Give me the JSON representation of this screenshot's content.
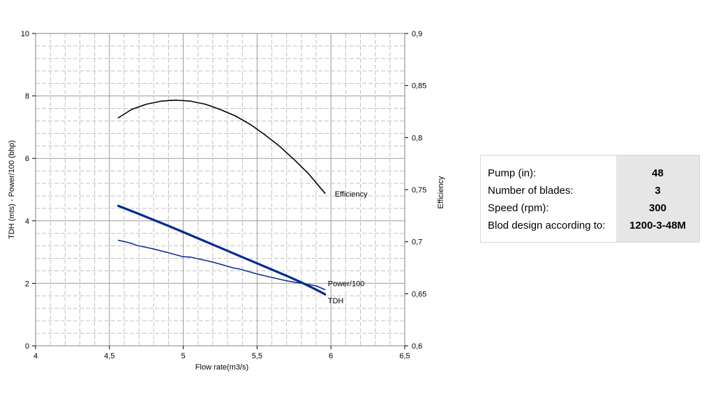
{
  "chart_data": {
    "type": "line",
    "xlabel": "Flow rate(m3/s)",
    "ylabel_left": "TDH (mts) - Power/100 (bhp)",
    "ylabel_right": "Efficiency",
    "xlim": [
      4,
      6.5
    ],
    "ylim_left": [
      0,
      10
    ],
    "ylim_right": [
      0.6,
      0.9
    ],
    "x_ticks": [
      "4",
      "4,5",
      "5",
      "5,5",
      "6",
      "6,5"
    ],
    "y_left_ticks": [
      "0",
      "2",
      "4",
      "6",
      "8",
      "10"
    ],
    "y_right_ticks": [
      "0,6",
      "0,65",
      "0,7",
      "0,75",
      "0,8",
      "0,85",
      "0,9"
    ],
    "grid": true,
    "series": [
      {
        "name": "Efficiency",
        "axis": "right",
        "color": "#000000",
        "x": [
          4.56,
          4.65,
          4.75,
          4.85,
          4.95,
          5.05,
          5.15,
          5.25,
          5.35,
          5.45,
          5.55,
          5.65,
          5.75,
          5.85,
          5.96
        ],
        "y": [
          0.819,
          0.827,
          0.832,
          0.835,
          0.836,
          0.835,
          0.832,
          0.827,
          0.821,
          0.813,
          0.803,
          0.792,
          0.779,
          0.765,
          0.7465
        ]
      },
      {
        "name": "TDH",
        "axis": "left",
        "color": "#002a90",
        "x": [
          4.56,
          4.7,
          4.8,
          4.9,
          5.0,
          5.1,
          5.2,
          5.3,
          5.4,
          5.5,
          5.6,
          5.7,
          5.8,
          5.9,
          5.96
        ],
        "y": [
          4.48,
          4.22,
          4.03,
          3.84,
          3.64,
          3.44,
          3.24,
          3.04,
          2.84,
          2.64,
          2.44,
          2.24,
          2.03,
          1.8,
          1.65
        ]
      },
      {
        "name": "Power/100",
        "axis": "left",
        "color": "#002a90",
        "x": [
          4.56,
          4.6,
          4.65,
          4.68,
          4.8,
          4.9,
          5.0,
          5.05,
          5.2,
          5.35,
          5.38,
          5.5,
          5.7,
          5.9,
          5.96
        ],
        "y": [
          3.38,
          3.34,
          3.28,
          3.22,
          3.1,
          2.98,
          2.85,
          2.84,
          2.68,
          2.48,
          2.46,
          2.3,
          2.08,
          1.92,
          1.8
        ]
      }
    ]
  },
  "info_table": {
    "rows": [
      {
        "label": "Pump (in):",
        "value": "48"
      },
      {
        "label": "Number of blades:",
        "value": "3"
      },
      {
        "label": "Speed (rpm):",
        "value": "300"
      },
      {
        "label": "Blod design according to:",
        "value": "1200-3-48M"
      }
    ]
  }
}
